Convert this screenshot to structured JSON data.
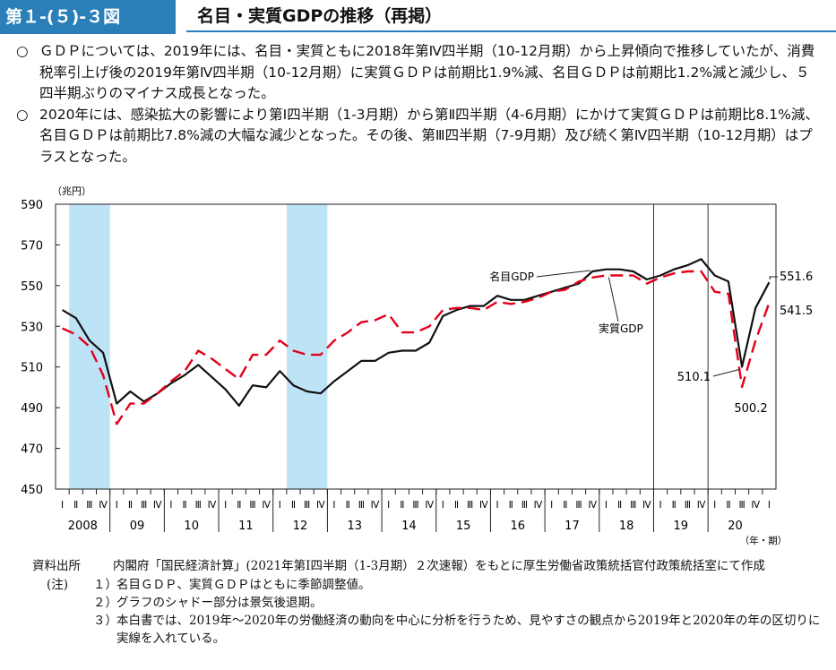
{
  "figure": {
    "number": "第１-(５)-３図",
    "title": "名目・実質GDPの推移（再掲）"
  },
  "bullets": [
    {
      "mark": "○",
      "text": "ＧＤＰについては、2019年には、名目・実質ともに2018年第Ⅳ四半期（10-12月期）から上昇傾向で推移していたが、消費税率引上げ後の2019年第Ⅳ四半期（10-12月期）に実質ＧＤＰは前期比1.9%減、名目ＧＤＰは前期比1.2%減と減少し、５四半期ぶりのマイナス成長となった。"
    },
    {
      "mark": "○",
      "text": "2020年には、感染拡大の影響により第Ⅰ四半期（1-3月期）から第Ⅱ四半期（4-6月期）にかけて実質ＧＤＰは前期比8.1%減、名目ＧＤＰは前期比7.8%減の大幅な減少となった。その後、第Ⅲ四半期（7-9月期）及び続く第Ⅳ四半期（10-12月期）はプラスとなった。"
    }
  ],
  "chart_data": {
    "type": "line",
    "ylabel": "（兆円）",
    "xlabel": "（年・期）",
    "ylim": [
      450,
      590
    ],
    "yticks": [
      450,
      470,
      490,
      510,
      530,
      550,
      570,
      590
    ],
    "quarter_labels": [
      "Ⅰ",
      "Ⅱ",
      "Ⅲ",
      "Ⅳ"
    ],
    "years": [
      "2008",
      "09",
      "10",
      "11",
      "12",
      "13",
      "14",
      "15",
      "16",
      "17",
      "18",
      "19",
      "20"
    ],
    "recession_shading": [
      {
        "from": 1,
        "to": 4
      },
      {
        "from": 17,
        "to": 20
      }
    ],
    "year_divider_lines": [
      {
        "at": 44
      },
      {
        "at": 48
      }
    ],
    "grid": false,
    "series": [
      {
        "name": "名目GDP",
        "style": "solid",
        "color": "#111111",
        "values": [
          538,
          534,
          523,
          517,
          492,
          498,
          493,
          497,
          502,
          506,
          511,
          505,
          499,
          491,
          501,
          500,
          508,
          501,
          498,
          497,
          503,
          508,
          513,
          513,
          517,
          518,
          518,
          522,
          535,
          538,
          540,
          540,
          545,
          543,
          543,
          545,
          547,
          549,
          551,
          557,
          558,
          558,
          557,
          553,
          555,
          558,
          560,
          563,
          555,
          552,
          510.1,
          539,
          551.6
        ]
      },
      {
        "name": "実質GDP",
        "style": "dashed",
        "color": "#e3001b",
        "values": [
          529,
          526,
          520,
          506,
          482,
          492,
          492,
          497,
          503,
          508,
          518,
          514,
          509,
          504,
          516,
          516,
          523,
          518,
          516,
          516,
          523,
          527,
          532,
          533,
          536,
          527,
          527,
          530,
          538,
          539,
          539,
          538,
          542,
          541,
          542,
          544,
          547,
          548,
          552,
          554,
          555,
          555,
          555,
          551,
          554,
          556,
          557,
          557,
          547,
          546,
          500.2,
          523,
          541.5
        ]
      }
    ],
    "annotations": [
      {
        "text": "名目GDP",
        "series": "名目GDP"
      },
      {
        "text": "実質GDP",
        "series": "実質GDP"
      },
      {
        "text": "551.6",
        "series": "名目GDP",
        "index": 52
      },
      {
        "text": "541.5",
        "series": "実質GDP",
        "index": 52
      },
      {
        "text": "510.1",
        "series": "名目GDP",
        "index": 50
      },
      {
        "text": "500.2",
        "series": "実質GDP",
        "index": 50
      }
    ]
  },
  "notes": {
    "source_label": "資料出所",
    "source_text": "内閣府「国民経済計算」(2021年第Ⅰ四半期（1-3月期）２次速報）をもとに厚生労働省政策統括官付政策統括室にて作成",
    "note_label": "(注)",
    "items": [
      {
        "num": "１）",
        "text": "名目ＧＤＰ、実質ＧＤＰはともに季節調整値。"
      },
      {
        "num": "２）",
        "text": "グラフのシャドー部分は景気後退期。"
      },
      {
        "num": "３）",
        "text": "本白書では、2019年～2020年の労働経済の動向を中心に分析を行うため、見やすさの観点から2019年と2020年の年の区切りに実線を入れている。"
      }
    ]
  }
}
